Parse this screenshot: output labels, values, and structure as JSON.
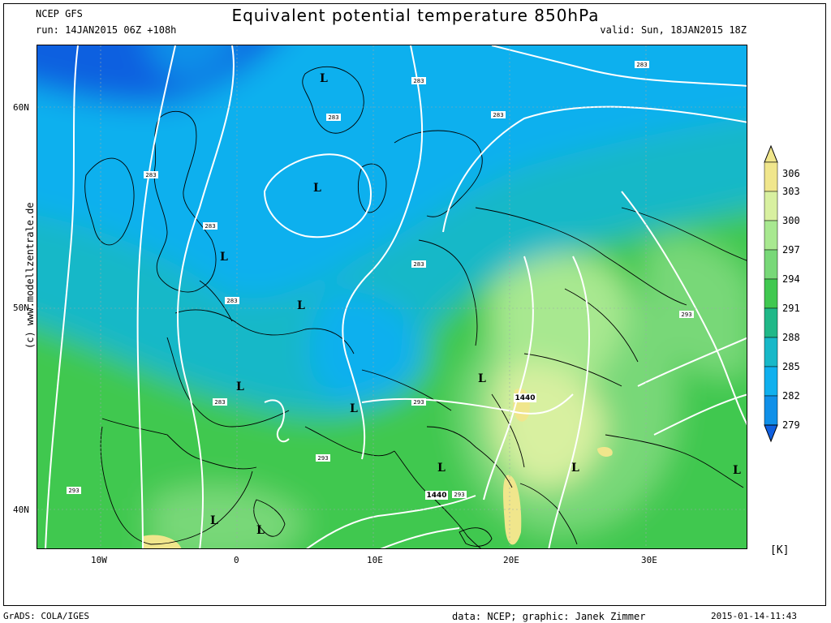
{
  "header": {
    "model": "NCEP GFS",
    "run": "run: 14JAN2015 06Z +108h",
    "title": "Equivalent potential temperature 850hPa",
    "valid": "valid: Sun, 18JAN2015 18Z"
  },
  "axes": {
    "lat_labels": [
      "60N",
      "50N",
      "40N"
    ],
    "lon_labels": [
      "10W",
      "0",
      "10E",
      "20E",
      "30E"
    ]
  },
  "legend": {
    "unit": "[K]",
    "levels": [
      "306",
      "303",
      "300",
      "297",
      "294",
      "291",
      "288",
      "285",
      "282",
      "279"
    ],
    "colors": [
      "#f0e68c",
      "#d8f0a0",
      "#a8e890",
      "#78d878",
      "#40c850",
      "#20b888",
      "#18b8c8",
      "#10b0ee",
      "#1090e8",
      "#1060e0"
    ]
  },
  "map": {
    "pressure_labels": [
      "1440",
      "1440"
    ],
    "contour_labels": [
      "283",
      "283",
      "283",
      "283",
      "283",
      "283",
      "283",
      "283",
      "283",
      "293",
      "293",
      "293",
      "293",
      "293"
    ],
    "lows": [
      "L",
      "L",
      "L",
      "L",
      "L",
      "L",
      "L",
      "L",
      "L",
      "L",
      "L",
      "L"
    ]
  },
  "watermark": "(c) www.modellzentrale.de",
  "footer": {
    "left": "GrADS: COLA/IGES",
    "center": "data: NCEP; graphic: Janek Zimmer",
    "right": "2015-01-14-11:43"
  }
}
